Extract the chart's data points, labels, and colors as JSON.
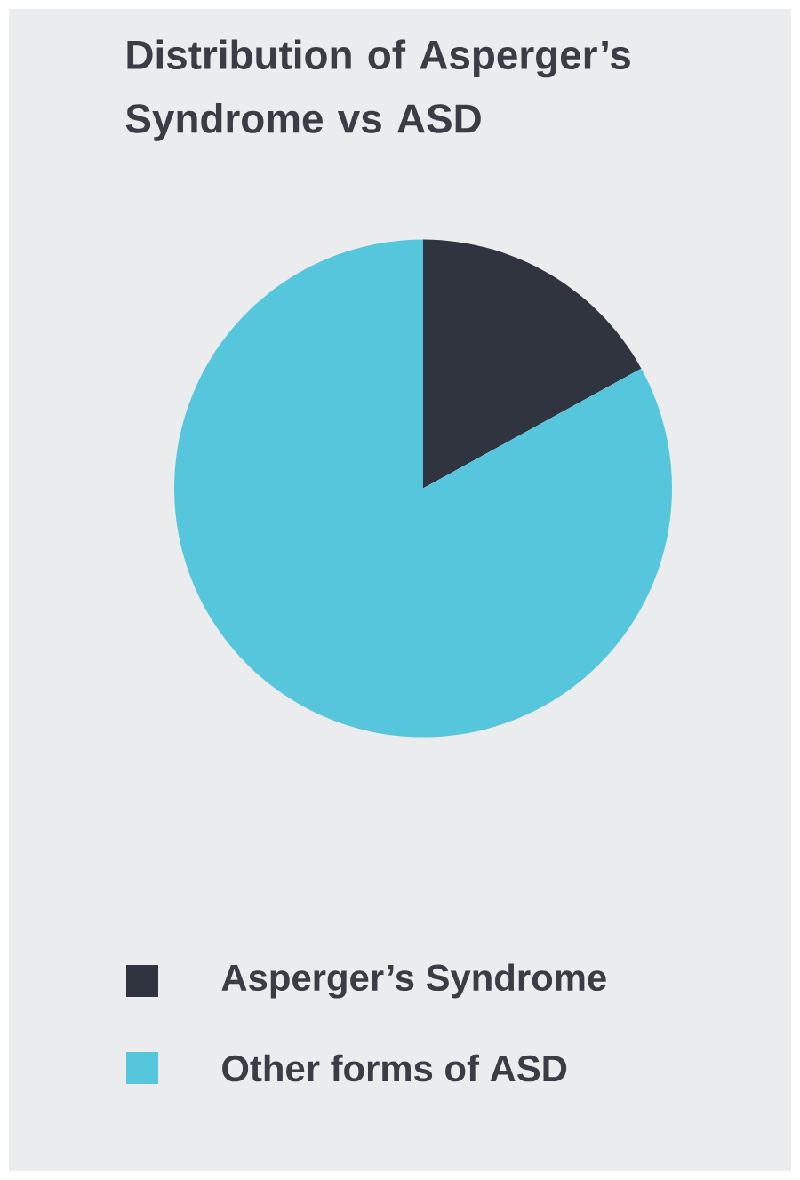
{
  "chart_data": {
    "type": "pie",
    "title": "Distribution of Asperger’s Syndrome vs ASD",
    "categories": [
      "Asperger’s Syndrome",
      "Other forms of ASD"
    ],
    "values": [
      17,
      83
    ],
    "colors": [
      "#30343f",
      "#56c6dc"
    ],
    "legend": "bottom"
  }
}
